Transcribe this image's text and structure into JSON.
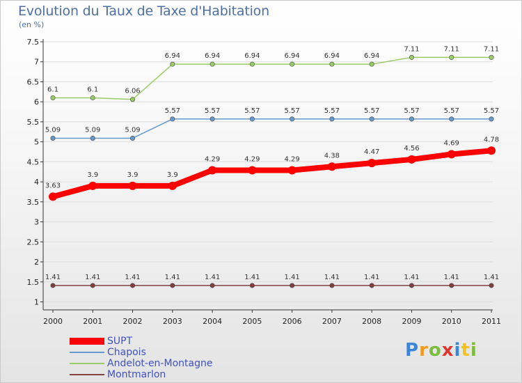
{
  "title": "Evolution du Taux de Taxe d'Habitation",
  "unit": "(en %)",
  "logo": "Proxiti",
  "chart_data": {
    "type": "line",
    "x": [
      "2000",
      "2001",
      "2002",
      "2003",
      "2004",
      "2005",
      "2006",
      "2007",
      "2008",
      "2009",
      "2010",
      "2011"
    ],
    "ylim": [
      0.8,
      7.5
    ],
    "yticks": [
      1,
      1.5,
      2,
      2.5,
      3,
      3.5,
      4,
      4.5,
      5,
      5.5,
      6,
      6.5,
      7,
      7.5
    ],
    "grid": true,
    "legend_position": "bottom-left",
    "series": [
      {
        "name": "SUPT",
        "color": "#ff0000",
        "line_width": 8,
        "marker_radius": 6,
        "values": [
          3.63,
          3.9,
          3.9,
          3.9,
          4.29,
          4.29,
          4.29,
          4.38,
          4.47,
          4.56,
          4.69,
          4.78
        ],
        "labels": [
          "3.63",
          "3.9",
          "3.9",
          "3.9",
          "4.29",
          "4.29",
          "4.29",
          "4.38",
          "4.47",
          "4.56",
          "4.69",
          "4.78"
        ]
      },
      {
        "name": "Chapois",
        "color": "#6699cc",
        "line_width": 1.5,
        "marker_radius": 3.2,
        "values": [
          5.09,
          5.09,
          5.09,
          5.57,
          5.57,
          5.57,
          5.57,
          5.57,
          5.57,
          5.57,
          5.57,
          5.57
        ],
        "labels": [
          "5.09",
          "5.09",
          "5.09",
          "5.57",
          "5.57",
          "5.57",
          "5.57",
          "5.57",
          "5.57",
          "5.57",
          "5.57",
          "5.57"
        ]
      },
      {
        "name": "Andelot-en-Montagne",
        "color": "#99cc66",
        "line_width": 1.5,
        "marker_radius": 3.2,
        "values": [
          6.1,
          6.1,
          6.06,
          6.94,
          6.94,
          6.94,
          6.94,
          6.94,
          6.94,
          7.11,
          7.11,
          7.11
        ],
        "labels": [
          "6.1",
          "6.1",
          "6.06",
          "6.94",
          "6.94",
          "6.94",
          "6.94",
          "6.94",
          "6.94",
          "7.11",
          "7.11",
          "7.11"
        ]
      },
      {
        "name": "Montmarlon",
        "color": "#804040",
        "line_width": 1.5,
        "marker_radius": 3.2,
        "values": [
          1.41,
          1.41,
          1.41,
          1.41,
          1.41,
          1.41,
          1.41,
          1.41,
          1.41,
          1.41,
          1.41,
          1.41
        ],
        "labels": [
          "1.41",
          "1.41",
          "1.41",
          "1.41",
          "1.41",
          "1.41",
          "1.41",
          "1.41",
          "1.41",
          "1.41",
          "1.41",
          "1.41"
        ]
      }
    ]
  }
}
